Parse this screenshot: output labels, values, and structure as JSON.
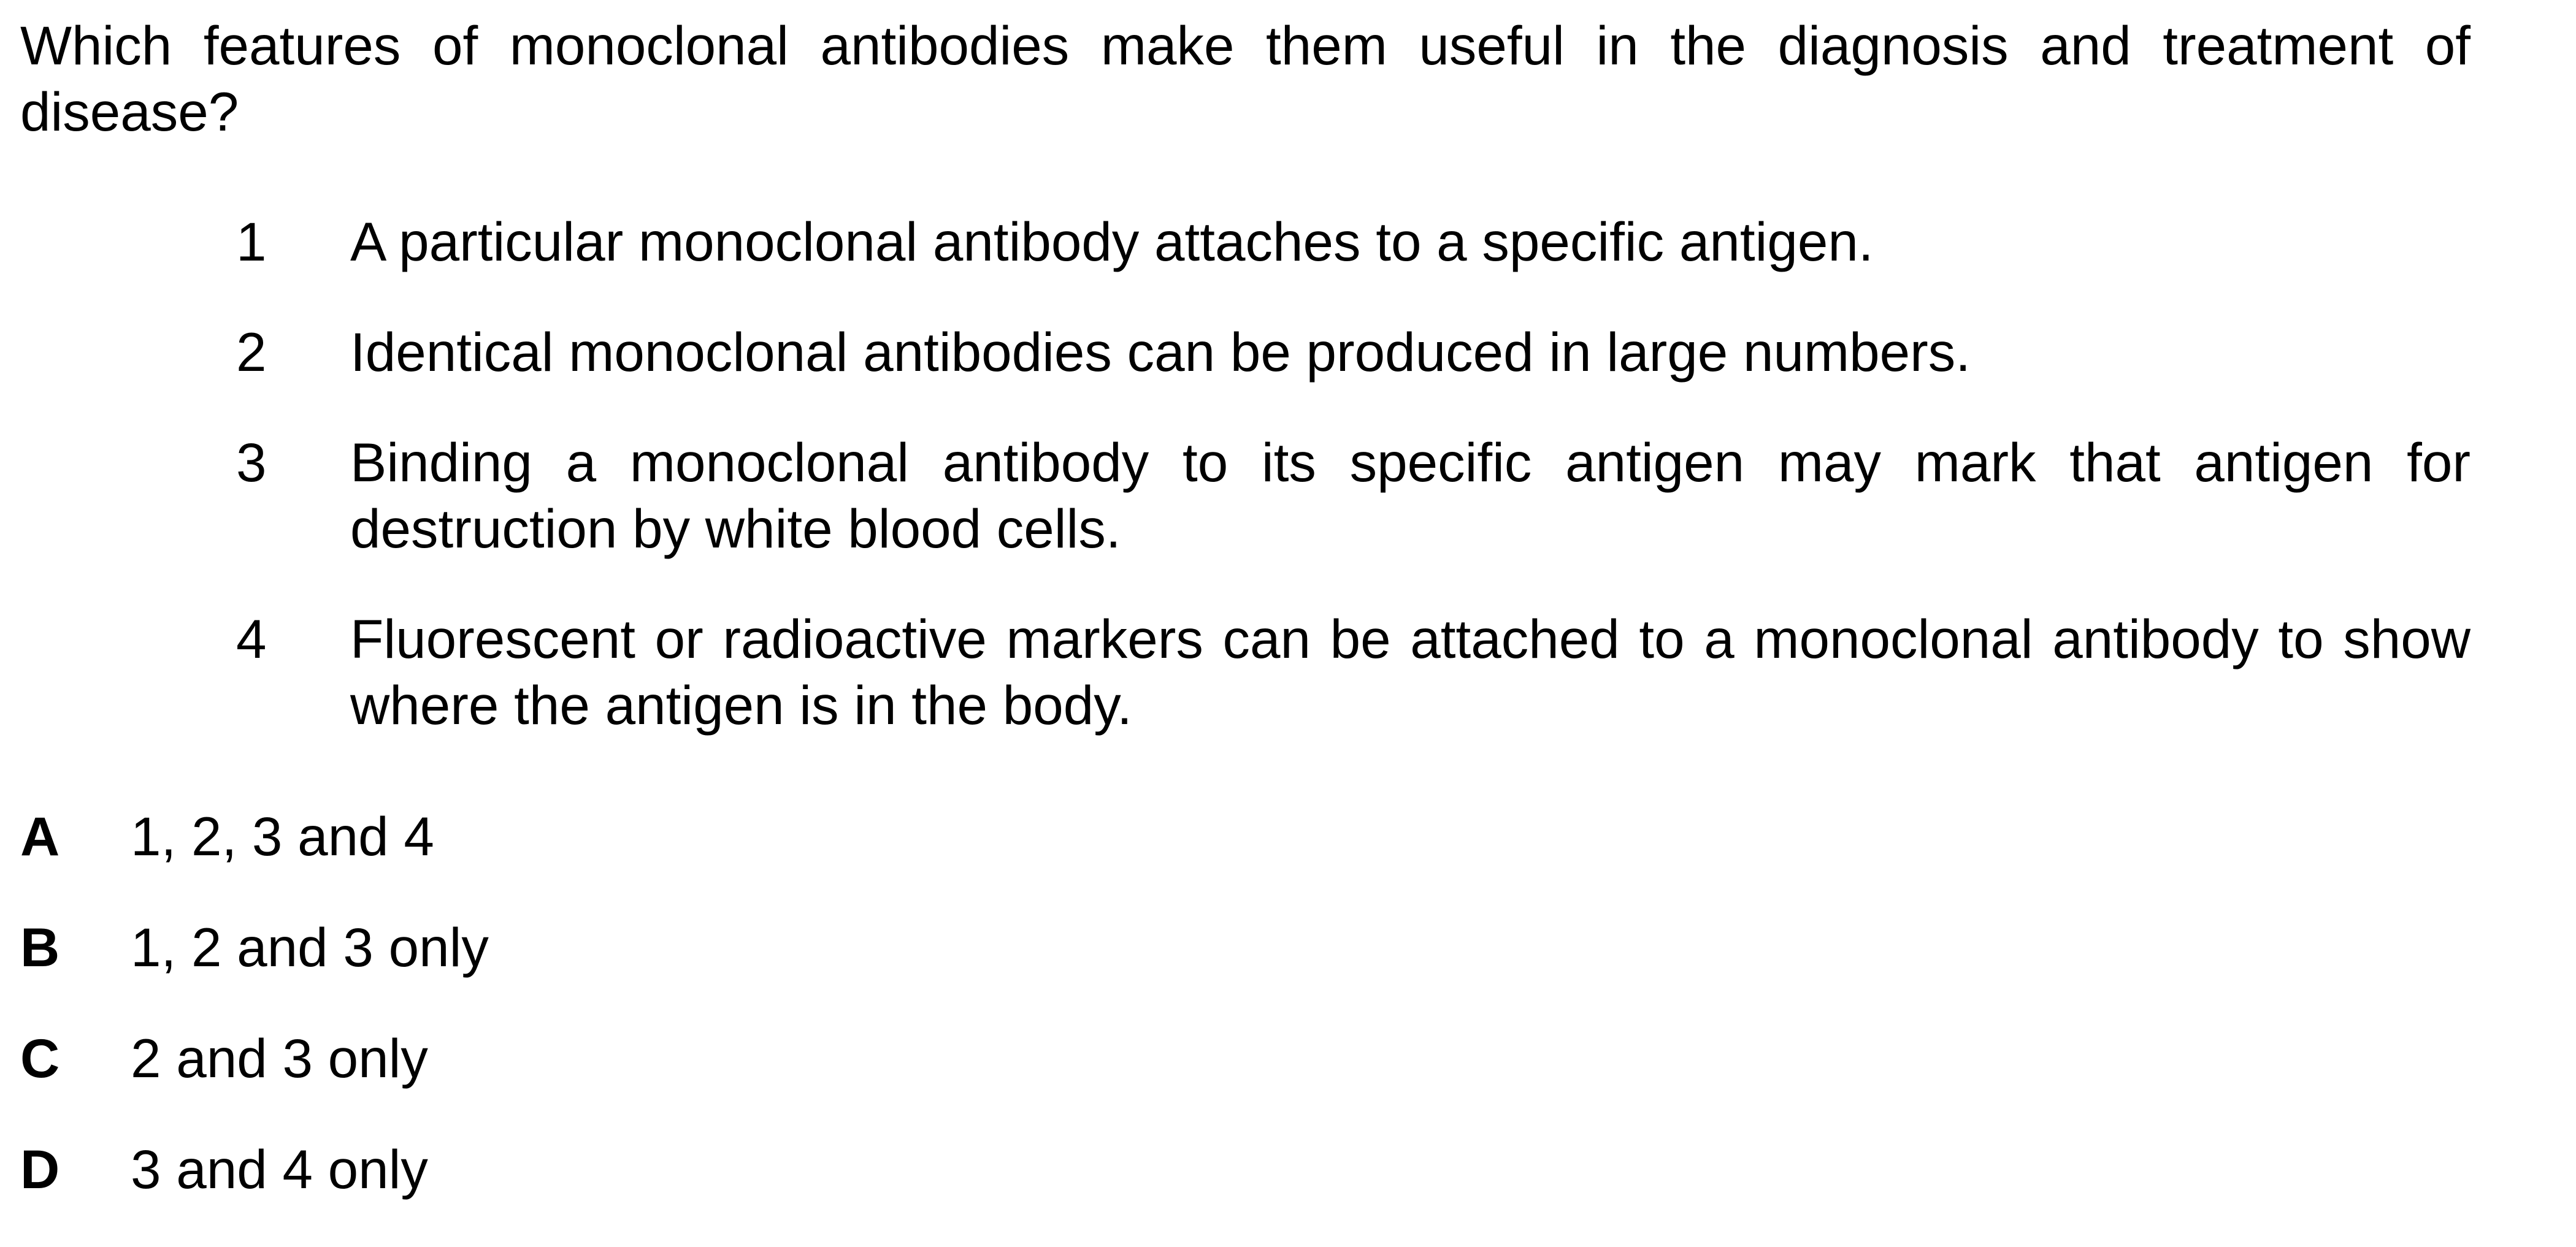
{
  "question": "Which features of monoclonal antibodies make them useful in the diagnosis and treatment of disease?",
  "statements": [
    {
      "number": "1",
      "text": "A particular monoclonal antibody attaches to a specific antigen."
    },
    {
      "number": "2",
      "text": "Identical monoclonal antibodies can be produced in large numbers."
    },
    {
      "number": "3",
      "text": "Binding a monoclonal antibody to its specific antigen may mark that antigen for destruction by white blood cells."
    },
    {
      "number": "4",
      "text": "Fluorescent or radioactive markers can be attached to a monoclonal antibody to show where the antigen is in the body."
    }
  ],
  "options": [
    {
      "letter": "A",
      "text": "1, 2, 3 and 4"
    },
    {
      "letter": "B",
      "text": "1, 2 and 3 only"
    },
    {
      "letter": "C",
      "text": "2 and 3 only"
    },
    {
      "letter": "D",
      "text": "3 and 4 only"
    }
  ]
}
